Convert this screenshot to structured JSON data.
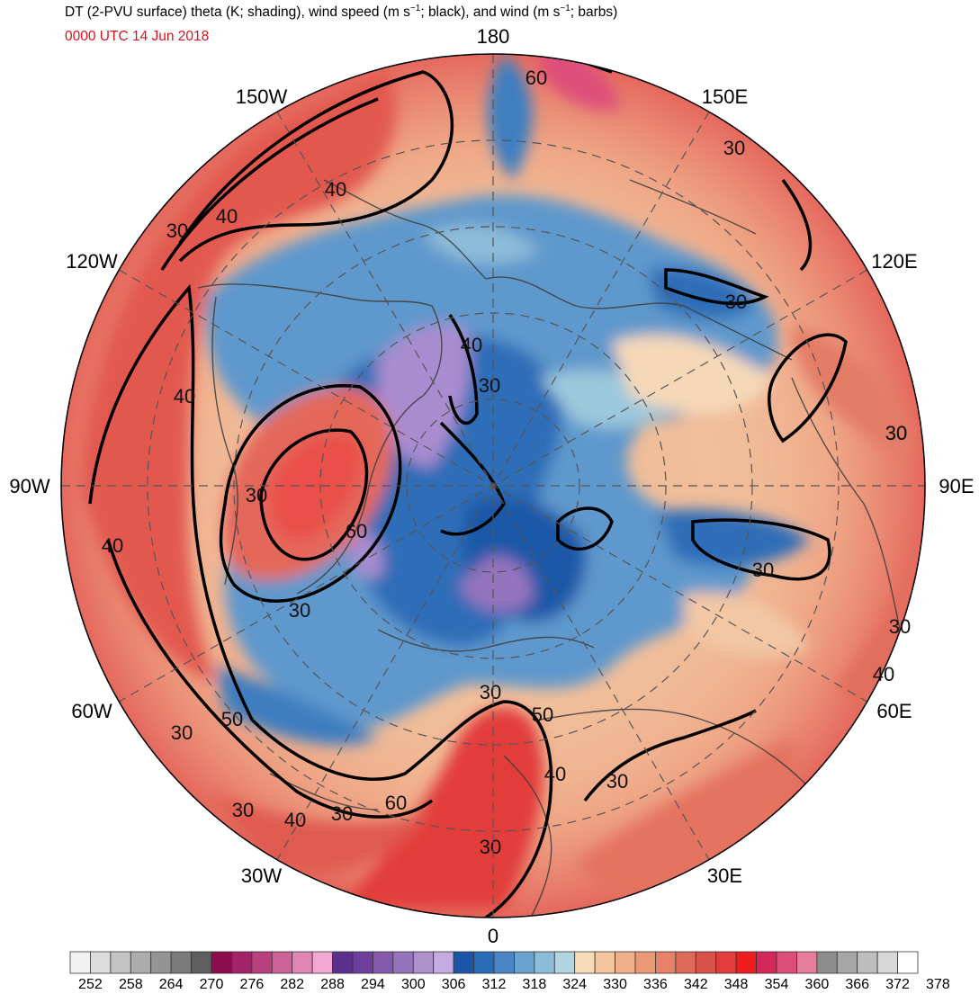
{
  "title": {
    "prefix": "DT (2-PVU surface) theta (K; shading), wind speed (m s",
    "mid1": "; black), and wind (m s",
    "end": "; barbs)",
    "exponent": "−1"
  },
  "valid_time": "0000 UTC 14 Jun 2018",
  "meridian_labels": [
    {
      "text": "180",
      "lon": 180
    },
    {
      "text": "150E",
      "lon": 150
    },
    {
      "text": "120E",
      "lon": 120
    },
    {
      "text": "90E",
      "lon": 90
    },
    {
      "text": "60E",
      "lon": 60
    },
    {
      "text": "30E",
      "lon": 30
    },
    {
      "text": "0",
      "lon": 0
    },
    {
      "text": "30W",
      "lon": -30
    },
    {
      "text": "60W",
      "lon": -60
    },
    {
      "text": "90W",
      "lon": -90
    },
    {
      "text": "120W",
      "lon": -120
    },
    {
      "text": "150W",
      "lon": -150
    }
  ],
  "contour_labels": [
    "60",
    "30",
    "40",
    "30",
    "40",
    "40",
    "30",
    "30",
    "40",
    "30",
    "30",
    "60",
    "40",
    "30",
    "30",
    "30",
    "50",
    "30",
    "30",
    "40",
    "50",
    "60",
    "30",
    "40",
    "30",
    "40",
    "30",
    "30",
    "30"
  ],
  "colorbar": {
    "unit": "K",
    "levels": [
      252,
      255,
      258,
      261,
      264,
      267,
      270,
      273,
      276,
      279,
      282,
      285,
      288,
      291,
      294,
      297,
      300,
      303,
      306,
      309,
      312,
      315,
      318,
      321,
      324,
      327,
      330,
      333,
      336,
      339,
      342,
      345,
      348,
      351,
      354,
      357,
      360,
      363,
      366,
      369,
      372,
      375,
      378
    ],
    "tick_labels": [
      "252",
      "258",
      "264",
      "270",
      "276",
      "282",
      "288",
      "294",
      "300",
      "306",
      "312",
      "318",
      "324",
      "330",
      "336",
      "342",
      "348",
      "354",
      "360",
      "366",
      "372",
      "378"
    ],
    "colors": [
      "#f2f2f2",
      "#dcdcdc",
      "#c4c4c4",
      "#acacac",
      "#949494",
      "#7a7a7a",
      "#5e5e5e",
      "#8c0d4f",
      "#a3236a",
      "#b8407f",
      "#cc6398",
      "#df86b4",
      "#f2a8d2",
      "#5c2f8c",
      "#6d3e9c",
      "#8559ac",
      "#9873bd",
      "#ad90cc",
      "#c3ace0",
      "#1b55a8",
      "#2a6cb6",
      "#4a86c4",
      "#68a2cd",
      "#8dbcd8",
      "#b1d6e2",
      "#f8dcb8",
      "#f4c69e",
      "#f0b08a",
      "#eb9876",
      "#e58268",
      "#df6a5a",
      "#d8524c",
      "#e23d3a",
      "#ef1d1d",
      "#d5285a",
      "#dd4f7a",
      "#e57d9a",
      "#8c8c8c",
      "#a6a6a6",
      "#bebebe",
      "#d8d8d8",
      "#ffffff"
    ]
  }
}
